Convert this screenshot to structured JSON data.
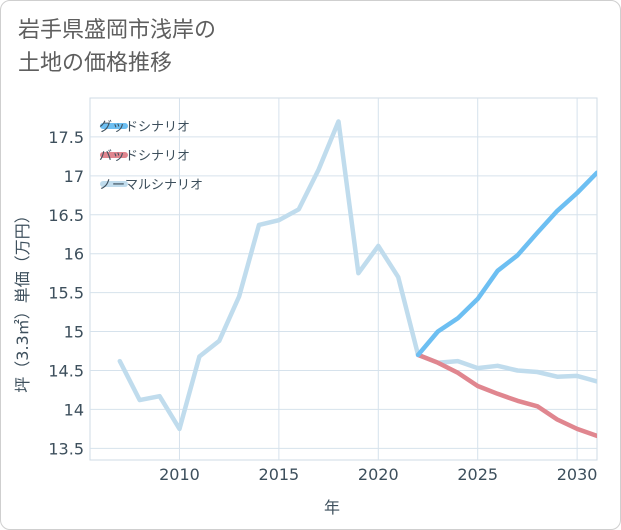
{
  "title": "岩手県盛岡市浅岸の\n土地の価格推移",
  "chart_data": {
    "type": "line",
    "xlabel": "年",
    "ylabel": "坪（3.3㎡）単価（万円）",
    "xlim": [
      2005.5,
      2031
    ],
    "ylim": [
      13.35,
      18.0
    ],
    "xticks": [
      2010,
      2015,
      2020,
      2025,
      2030
    ],
    "yticks": [
      13.5,
      14,
      14.5,
      15,
      15.5,
      16,
      16.5,
      17,
      17.5
    ],
    "series": [
      {
        "name": "グッドシナリオ",
        "color": "#6dbff2",
        "x": [
          2022,
          2023,
          2024,
          2025,
          2026,
          2027,
          2028,
          2029,
          2030,
          2031
        ],
        "values": [
          14.7,
          15.0,
          15.17,
          15.42,
          15.78,
          15.98,
          16.27,
          16.55,
          16.78,
          17.04
        ]
      },
      {
        "name": "バッドシナリオ",
        "color": "#e0868f",
        "x": [
          2022,
          2023,
          2024,
          2025,
          2026,
          2027,
          2028,
          2029,
          2030,
          2031
        ],
        "values": [
          14.7,
          14.6,
          14.47,
          14.3,
          14.2,
          14.11,
          14.04,
          13.87,
          13.75,
          13.66
        ]
      },
      {
        "name": "ノーマルシナリオ",
        "color": "#c0dced",
        "x": [
          2007,
          2008,
          2009,
          2010,
          2011,
          2012,
          2013,
          2014,
          2015,
          2016,
          2017,
          2018,
          2019,
          2020,
          2021,
          2022,
          2023,
          2024,
          2025,
          2026,
          2027,
          2028,
          2029,
          2030,
          2031
        ],
        "values": [
          14.62,
          14.12,
          14.17,
          13.75,
          14.68,
          14.88,
          15.45,
          16.37,
          16.43,
          16.57,
          17.08,
          17.7,
          15.75,
          16.1,
          15.7,
          14.7,
          14.6,
          14.62,
          14.53,
          14.56,
          14.5,
          14.48,
          14.42,
          14.43,
          14.36
        ]
      }
    ],
    "legend": "top-left"
  }
}
